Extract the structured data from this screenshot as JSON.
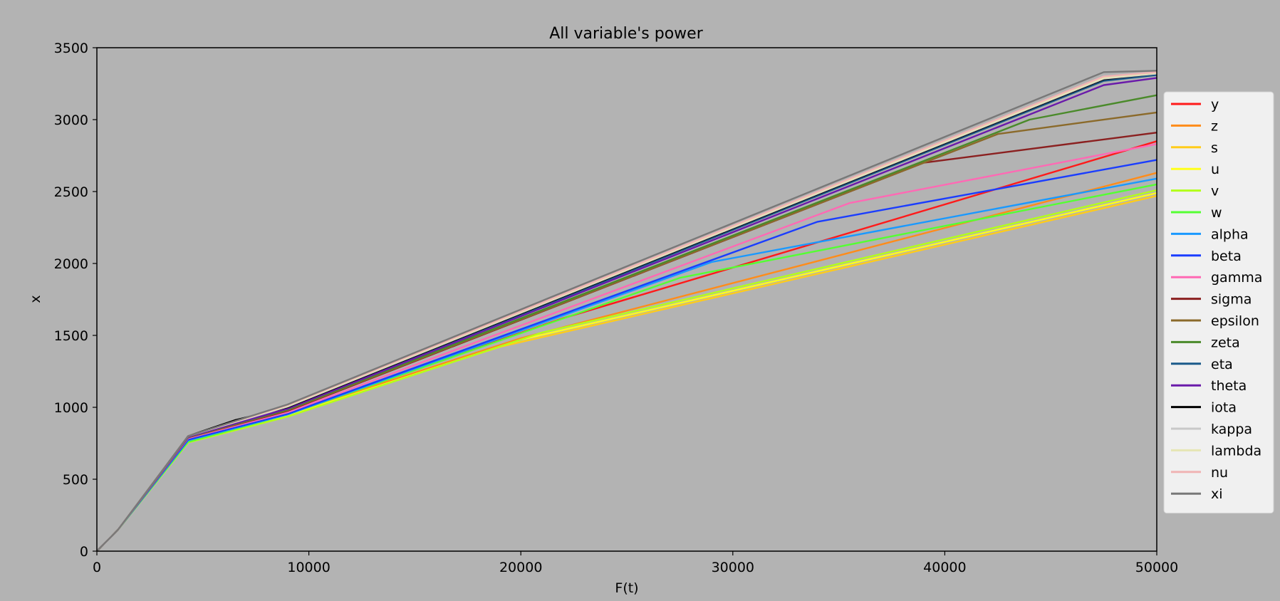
{
  "chart_data": {
    "type": "line",
    "title": "All variable's power",
    "xlabel": "F(t)",
    "ylabel": "x",
    "xlim": [
      0,
      50000
    ],
    "ylim": [
      0,
      3500
    ],
    "xticks": [
      0,
      10000,
      20000,
      30000,
      40000,
      50000
    ],
    "yticks": [
      0,
      500,
      1000,
      1500,
      2000,
      2500,
      3000,
      3500
    ],
    "grid": false,
    "legend_position": "right",
    "series": [
      {
        "name": "y",
        "color": "#ff1a1a",
        "points": [
          [
            0,
            0
          ],
          [
            1000,
            150
          ],
          [
            4300,
            790
          ],
          [
            9000,
            960
          ],
          [
            22000,
            1620
          ],
          [
            50000,
            2850
          ]
        ]
      },
      {
        "name": "z",
        "color": "#ff8c1a",
        "points": [
          [
            0,
            0
          ],
          [
            1000,
            150
          ],
          [
            4300,
            785
          ],
          [
            9000,
            955
          ],
          [
            20000,
            1480
          ],
          [
            50000,
            2630
          ]
        ]
      },
      {
        "name": "s",
        "color": "#ffcc1a",
        "points": [
          [
            0,
            0
          ],
          [
            1000,
            150
          ],
          [
            4300,
            770
          ],
          [
            9000,
            945
          ],
          [
            19000,
            1420
          ],
          [
            50000,
            2470
          ]
        ]
      },
      {
        "name": "u",
        "color": "#ffff1a",
        "points": [
          [
            0,
            0
          ],
          [
            1000,
            150
          ],
          [
            4300,
            760
          ],
          [
            9000,
            940
          ],
          [
            20000,
            1470
          ],
          [
            50000,
            2490
          ]
        ]
      },
      {
        "name": "v",
        "color": "#b3ff1a",
        "points": [
          [
            0,
            0
          ],
          [
            1000,
            150
          ],
          [
            4300,
            755
          ],
          [
            9000,
            935
          ],
          [
            21000,
            1520
          ],
          [
            50000,
            2510
          ]
        ]
      },
      {
        "name": "w",
        "color": "#55ff33",
        "points": [
          [
            0,
            0
          ],
          [
            1000,
            150
          ],
          [
            4300,
            760
          ],
          [
            9000,
            950
          ],
          [
            27500,
            1900
          ],
          [
            50000,
            2550
          ]
        ]
      },
      {
        "name": "alpha",
        "color": "#1a99ff",
        "points": [
          [
            0,
            0
          ],
          [
            1000,
            150
          ],
          [
            4300,
            770
          ],
          [
            9000,
            950
          ],
          [
            29000,
            2010
          ],
          [
            50000,
            2590
          ]
        ]
      },
      {
        "name": "beta",
        "color": "#1a3dff",
        "points": [
          [
            0,
            0
          ],
          [
            1000,
            150
          ],
          [
            4300,
            775
          ],
          [
            9000,
            955
          ],
          [
            34000,
            2290
          ],
          [
            50000,
            2720
          ]
        ]
      },
      {
        "name": "gamma",
        "color": "#ff69b4",
        "points": [
          [
            0,
            0
          ],
          [
            1000,
            150
          ],
          [
            4300,
            785
          ],
          [
            9000,
            965
          ],
          [
            35500,
            2420
          ],
          [
            50000,
            2830
          ]
        ]
      },
      {
        "name": "sigma",
        "color": "#8b2020",
        "points": [
          [
            0,
            0
          ],
          [
            1000,
            150
          ],
          [
            4300,
            790
          ],
          [
            9000,
            975
          ],
          [
            39000,
            2700
          ],
          [
            50000,
            2910
          ]
        ]
      },
      {
        "name": "epsilon",
        "color": "#8b6a2a",
        "points": [
          [
            0,
            0
          ],
          [
            1000,
            150
          ],
          [
            4300,
            790
          ],
          [
            9000,
            980
          ],
          [
            42500,
            2900
          ],
          [
            50000,
            3050
          ]
        ]
      },
      {
        "name": "zeta",
        "color": "#4a8a2a",
        "points": [
          [
            0,
            0
          ],
          [
            1000,
            150
          ],
          [
            4300,
            795
          ],
          [
            9000,
            985
          ],
          [
            44000,
            3000
          ],
          [
            50000,
            3170
          ]
        ]
      },
      {
        "name": "eta",
        "color": "#1a5a8a",
        "points": [
          [
            0,
            0
          ],
          [
            1000,
            150
          ],
          [
            4300,
            795
          ],
          [
            9000,
            990
          ],
          [
            47500,
            3270
          ],
          [
            50000,
            3310
          ]
        ]
      },
      {
        "name": "theta",
        "color": "#6a1aaa",
        "points": [
          [
            0,
            0
          ],
          [
            1000,
            150
          ],
          [
            4300,
            795
          ],
          [
            9000,
            990
          ],
          [
            47500,
            3240
          ],
          [
            50000,
            3290
          ]
        ]
      },
      {
        "name": "iota",
        "color": "#000000",
        "points": [
          [
            0,
            0
          ],
          [
            1000,
            150
          ],
          [
            4300,
            800
          ],
          [
            6500,
            910
          ],
          [
            9000,
            1000
          ],
          [
            47500,
            3280
          ],
          [
            50000,
            3320
          ]
        ]
      },
      {
        "name": "kappa",
        "color": "#c8c8c8",
        "points": [
          [
            0,
            0
          ],
          [
            1000,
            150
          ],
          [
            4300,
            800
          ],
          [
            9000,
            1005
          ],
          [
            47500,
            3285
          ],
          [
            50000,
            3320
          ]
        ]
      },
      {
        "name": "lambda",
        "color": "#e6e6b4",
        "points": [
          [
            0,
            0
          ],
          [
            1000,
            150
          ],
          [
            4300,
            800
          ],
          [
            9000,
            1010
          ],
          [
            47500,
            3290
          ],
          [
            50000,
            3325
          ]
        ]
      },
      {
        "name": "nu",
        "color": "#f0b4b4",
        "points": [
          [
            0,
            0
          ],
          [
            1000,
            150
          ],
          [
            4300,
            800
          ],
          [
            9000,
            1015
          ],
          [
            47500,
            3300
          ],
          [
            50000,
            3330
          ]
        ]
      },
      {
        "name": "xi",
        "color": "#787878",
        "points": [
          [
            0,
            0
          ],
          [
            1000,
            150
          ],
          [
            4300,
            800
          ],
          [
            9000,
            1020
          ],
          [
            47500,
            3330
          ],
          [
            50000,
            3340
          ]
        ]
      }
    ]
  }
}
